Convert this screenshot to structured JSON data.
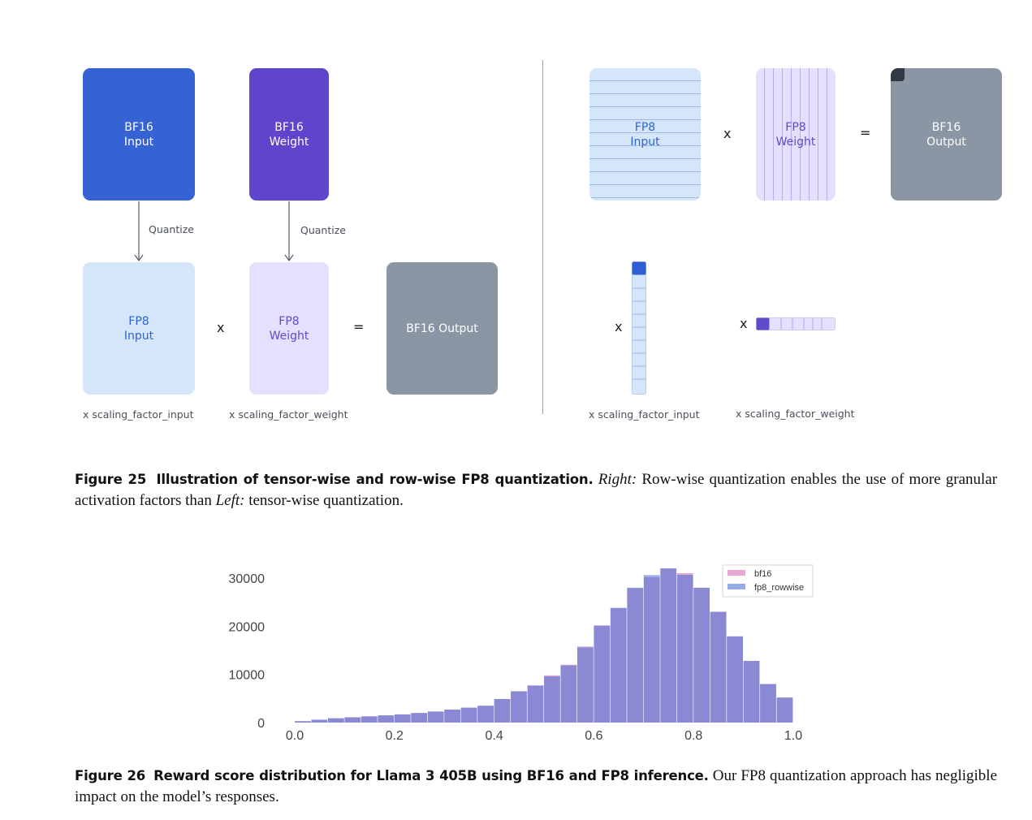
{
  "left_diagram": {
    "bf16_input": {
      "line1": "BF16",
      "line2": "Input"
    },
    "bf16_weight": {
      "line1": "BF16",
      "line2": "Weight"
    },
    "quantize_1": "Quantize",
    "quantize_2": "Quantize",
    "fp8_input": {
      "line1": "FP8",
      "line2": "Input"
    },
    "times": "x",
    "fp8_weight": {
      "line1": "FP8",
      "line2": "Weight"
    },
    "equals": "=",
    "bf16_output": "BF16 Output",
    "scale_input": "x scaling_factor_input",
    "scale_weight": "x scaling_factor_weight"
  },
  "right_diagram": {
    "fp8_input": {
      "line1": "FP8",
      "line2": "Input"
    },
    "times": "x",
    "fp8_weight": {
      "line1": "FP8",
      "line2": "Weight"
    },
    "equals": "=",
    "bf16_output": {
      "line1": "BF16",
      "line2": "Output"
    },
    "times_col": "x",
    "times_row": "x",
    "scale_input": "x scaling_factor_input",
    "scale_weight": "x scaling_factor_weight"
  },
  "figure25": {
    "label": "Figure 25",
    "bold_title": "Illustration of tensor-wise and row-wise FP8 quantization.",
    "right_label": "Right:",
    "text1": "Row-wise quantization enables the use of more granular activation factors than",
    "left_label": "Left:",
    "text2": "tensor-wise quantization."
  },
  "figure26": {
    "label": "Figure 26",
    "bold_title": "Reward score distribution for Llama 3 405B using BF16 and FP8 inference.",
    "text": "Our FP8 quantization approach has negligible impact on the model’s responses."
  },
  "chart_data": {
    "type": "bar",
    "title": "",
    "xlabel": "",
    "ylabel": "",
    "xlim": [
      0.0,
      1.0
    ],
    "ylim": [
      0,
      32500
    ],
    "x_ticks": [
      "0.0",
      "0.2",
      "0.4",
      "0.6",
      "0.8",
      "1.0"
    ],
    "y_ticks": [
      "0",
      "10000",
      "20000",
      "30000"
    ],
    "legend": {
      "position": "top-right",
      "entries": [
        "bf16",
        "fp8_rowwise"
      ]
    },
    "colors": {
      "bf16": "#e4a8d2",
      "fp8_rowwise": "#93abe6",
      "overlap": "#8c89d4"
    },
    "bin_width": 0.0333,
    "bin_starts": [
      0.0,
      0.0333,
      0.0667,
      0.1,
      0.1333,
      0.1667,
      0.2,
      0.2333,
      0.2667,
      0.3,
      0.3333,
      0.3667,
      0.4,
      0.4333,
      0.4667,
      0.5,
      0.5333,
      0.5667,
      0.6,
      0.6333,
      0.6667,
      0.7,
      0.7333,
      0.7667,
      0.8,
      0.8333,
      0.8667,
      0.9,
      0.9333,
      0.9667
    ],
    "series": [
      {
        "name": "bf16",
        "values": [
          300,
          600,
          900,
          1100,
          1300,
          1500,
          1700,
          2000,
          2300,
          2700,
          3100,
          3500,
          4900,
          6500,
          7700,
          9800,
          12000,
          15800,
          20200,
          23800,
          27900,
          30200,
          32000,
          31000,
          28000,
          23000,
          17900,
          12800,
          8000,
          5200
        ]
      },
      {
        "name": "fp8_rowwise",
        "values": [
          300,
          600,
          900,
          1100,
          1300,
          1500,
          1700,
          2000,
          2300,
          2700,
          3100,
          3500,
          4900,
          6500,
          7700,
          9600,
          11900,
          15600,
          20100,
          23800,
          28000,
          30600,
          32000,
          30700,
          28000,
          23000,
          17900,
          12800,
          8000,
          5200
        ]
      }
    ]
  }
}
